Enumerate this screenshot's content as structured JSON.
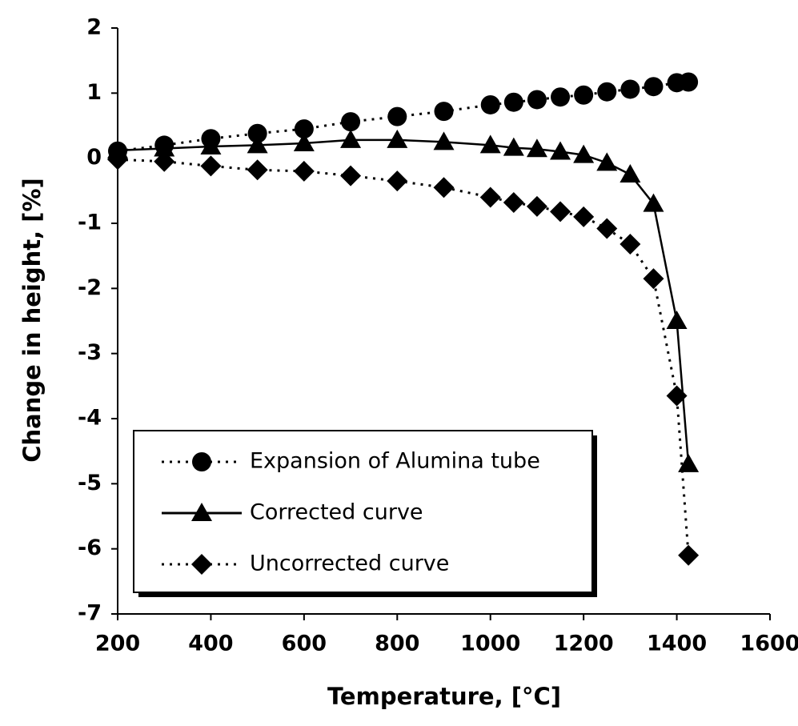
{
  "chart_data": {
    "type": "line",
    "xlabel": "Temperature, [°C]",
    "ylabel": "Change in height, [%]",
    "xlim": [
      200,
      1600
    ],
    "xticks": [
      200,
      400,
      600,
      800,
      1000,
      1200,
      1400,
      1600
    ],
    "ylim": [
      -7,
      2
    ],
    "yticks": [
      2,
      1,
      0,
      -1,
      -2,
      -3,
      -4,
      -5,
      -6,
      -7
    ],
    "grid": false,
    "legend": "lower left",
    "x": [
      200,
      300,
      400,
      500,
      600,
      700,
      800,
      900,
      1000,
      1050,
      1100,
      1150,
      1200,
      1250,
      1300,
      1350,
      1400,
      1425
    ],
    "series": [
      {
        "name": "Expansion of Alumina tube",
        "color": "#000000",
        "line_style": "dotted",
        "marker": "circle",
        "values": [
          0.11,
          0.2,
          0.3,
          0.38,
          0.45,
          0.56,
          0.64,
          0.72,
          0.82,
          0.86,
          0.9,
          0.94,
          0.97,
          1.02,
          1.06,
          1.1,
          1.16,
          1.17
        ]
      },
      {
        "name": "Corrected curve",
        "color": "#000000",
        "line_style": "solid",
        "marker": "triangle",
        "values": [
          0.12,
          0.15,
          0.18,
          0.2,
          0.23,
          0.28,
          0.28,
          0.25,
          0.2,
          0.16,
          0.14,
          0.1,
          0.05,
          -0.07,
          -0.25,
          -0.7,
          -2.5,
          -4.7
        ]
      },
      {
        "name": "Uncorrected curve",
        "color": "#000000",
        "line_style": "dotted",
        "marker": "diamond",
        "values": [
          -0.02,
          -0.05,
          -0.12,
          -0.18,
          -0.2,
          -0.27,
          -0.35,
          -0.45,
          -0.6,
          -0.68,
          -0.74,
          -0.82,
          -0.9,
          -1.08,
          -1.32,
          -1.85,
          -3.65,
          -6.1
        ]
      }
    ]
  }
}
